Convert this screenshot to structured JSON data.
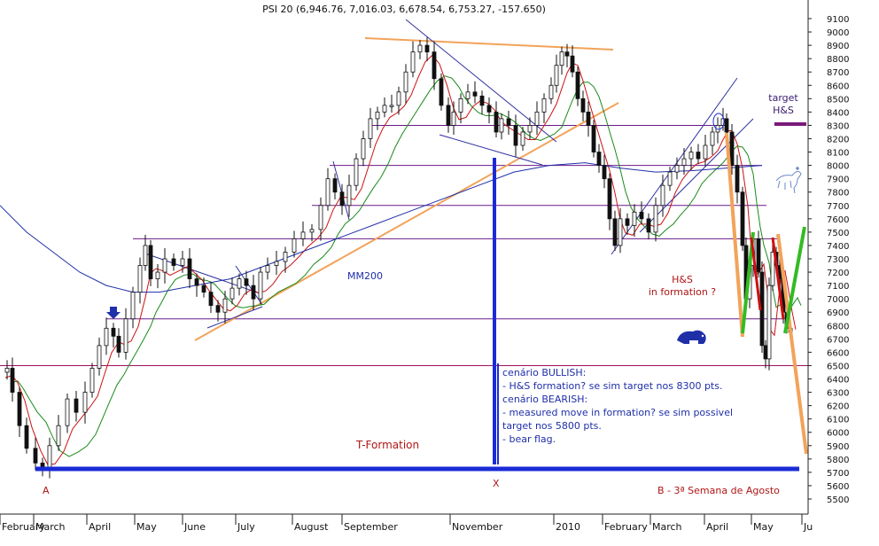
{
  "chart_data": {
    "type": "candlestick",
    "title": "PSI 20 (6,946.76, 7,016.03, 6,678.54, 6,753.27, -157.650)",
    "y_axis": {
      "position": "right",
      "ylim": [
        5380,
        9180
      ],
      "ticks": [
        9100,
        9000,
        8900,
        8800,
        8700,
        8600,
        8500,
        8400,
        8300,
        8200,
        8100,
        8000,
        7900,
        7800,
        7700,
        7600,
        7500,
        7400,
        7300,
        7200,
        7100,
        7000,
        6900,
        6800,
        6700,
        6600,
        6500,
        6400,
        6300,
        6200,
        6100,
        6000,
        5900,
        5800,
        5700,
        5600,
        5500
      ]
    },
    "x_axis": {
      "month_labels": [
        "February",
        "March",
        "April",
        "May",
        "June",
        "July",
        "August",
        "September",
        "November",
        "2010",
        "February",
        "March",
        "April",
        "May",
        "Ju"
      ]
    },
    "series": [
      {
        "name": "MM200",
        "kind": "moving-average",
        "color": "#1f2fa8"
      },
      {
        "kind": "moving-average",
        "color": "#cc1111"
      },
      {
        "kind": "moving-average",
        "color": "#1a8a1a"
      }
    ],
    "price_path": [
      [
        0,
        6450
      ],
      [
        8,
        6480
      ],
      [
        14,
        6300
      ],
      [
        22,
        6050
      ],
      [
        30,
        5880
      ],
      [
        40,
        5770
      ],
      [
        48,
        5740
      ],
      [
        56,
        5900
      ],
      [
        66,
        6050
      ],
      [
        76,
        6250
      ],
      [
        86,
        6150
      ],
      [
        96,
        6300
      ],
      [
        104,
        6480
      ],
      [
        112,
        6650
      ],
      [
        120,
        6780
      ],
      [
        128,
        6720
      ],
      [
        134,
        6600
      ],
      [
        142,
        6850
      ],
      [
        150,
        7050
      ],
      [
        158,
        7250
      ],
      [
        164,
        7400
      ],
      [
        170,
        7150
      ],
      [
        178,
        7200
      ],
      [
        186,
        7300
      ],
      [
        196,
        7250
      ],
      [
        206,
        7300
      ],
      [
        214,
        7150
      ],
      [
        222,
        7100
      ],
      [
        230,
        7050
      ],
      [
        238,
        6950
      ],
      [
        246,
        6900
      ],
      [
        254,
        7000
      ],
      [
        262,
        7080
      ],
      [
        270,
        7150
      ],
      [
        278,
        7100
      ],
      [
        286,
        7000
      ],
      [
        294,
        7200
      ],
      [
        302,
        7250
      ],
      [
        312,
        7280
      ],
      [
        322,
        7350
      ],
      [
        332,
        7450
      ],
      [
        342,
        7500
      ],
      [
        352,
        7520
      ],
      [
        362,
        7700
      ],
      [
        370,
        7900
      ],
      [
        378,
        7800
      ],
      [
        386,
        7700
      ],
      [
        394,
        7850
      ],
      [
        402,
        8050
      ],
      [
        410,
        8200
      ],
      [
        418,
        8350
      ],
      [
        426,
        8400
      ],
      [
        434,
        8450
      ],
      [
        442,
        8450
      ],
      [
        450,
        8550
      ],
      [
        458,
        8700
      ],
      [
        466,
        8850
      ],
      [
        474,
        8900
      ],
      [
        482,
        8850
      ],
      [
        490,
        8650
      ],
      [
        498,
        8450
      ],
      [
        506,
        8300
      ],
      [
        512,
        8400
      ],
      [
        520,
        8500
      ],
      [
        528,
        8550
      ],
      [
        536,
        8520
      ],
      [
        544,
        8450
      ],
      [
        552,
        8400
      ],
      [
        560,
        8250
      ],
      [
        566,
        8350
      ],
      [
        574,
        8300
      ],
      [
        582,
        8150
      ],
      [
        590,
        8250
      ],
      [
        598,
        8300
      ],
      [
        606,
        8400
      ],
      [
        614,
        8500
      ],
      [
        622,
        8600
      ],
      [
        628,
        8750
      ],
      [
        634,
        8850
      ],
      [
        640,
        8820
      ],
      [
        646,
        8700
      ],
      [
        652,
        8500
      ],
      [
        658,
        8400
      ],
      [
        664,
        8300
      ],
      [
        670,
        8100
      ],
      [
        676,
        8000
      ],
      [
        682,
        7900
      ],
      [
        688,
        7600
      ],
      [
        694,
        7400
      ],
      [
        700,
        7600
      ],
      [
        708,
        7550
      ],
      [
        716,
        7650
      ],
      [
        724,
        7600
      ],
      [
        732,
        7500
      ],
      [
        740,
        7700
      ],
      [
        748,
        7850
      ],
      [
        756,
        7950
      ],
      [
        764,
        8000
      ],
      [
        772,
        8050
      ],
      [
        780,
        8100
      ],
      [
        788,
        8050
      ],
      [
        796,
        8150
      ],
      [
        804,
        8250
      ],
      [
        810,
        8300
      ],
      [
        816,
        8350
      ],
      [
        820,
        8250
      ],
      [
        826,
        8000
      ],
      [
        832,
        7800
      ],
      [
        838,
        7400
      ],
      [
        842,
        7000
      ],
      [
        846,
        7250
      ],
      [
        850,
        7450
      ],
      [
        856,
        7200
      ],
      [
        860,
        6650
      ],
      [
        864,
        6550
      ],
      [
        868,
        7100
      ],
      [
        872,
        7350
      ],
      [
        876,
        7250
      ],
      [
        880,
        7150
      ],
      [
        884,
        6900
      ],
      [
        888,
        6780
      ],
      [
        892,
        6750
      ]
    ],
    "horizontal_levels": [
      8300,
      8000,
      7700,
      7450,
      6850,
      6500,
      5720
    ],
    "annotations": {
      "mm200_label": "MM200",
      "t_formation": "T-Formation",
      "hs_in_formation": "H&S\nin formation ?",
      "target_hs": "target\nH&S",
      "point_a": "A",
      "point_x": "X",
      "point_b": "B - 3ª Semana de Agosto",
      "scenario_text": "cenário BULLISH:\n- H&S formation? se sim target nos 8300 pts.\n\ncenário BEARISH:\n- measured move in formation? se sim possivel\ntarget nos 5800 pts.\n- bear flag."
    },
    "grid": false,
    "legend": "none"
  }
}
